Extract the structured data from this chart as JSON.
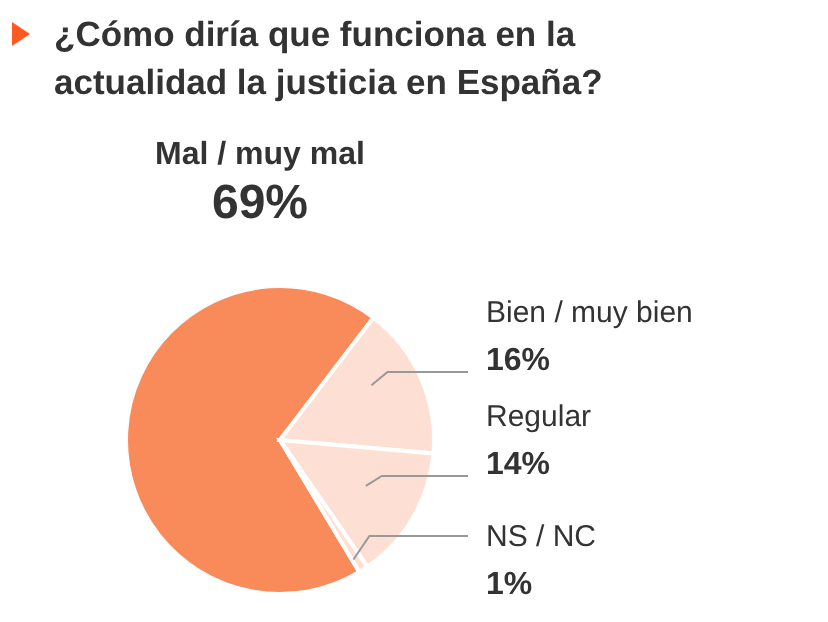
{
  "chart_data": {
    "type": "pie",
    "title": "¿Cómo diría que funciona en la actualidad la justicia en España?",
    "categories": [
      "Mal / muy mal",
      "Bien / muy bien",
      "Regular",
      "NS / NC"
    ],
    "values": [
      69,
      16,
      14,
      1
    ],
    "value_labels": [
      "69%",
      "16%",
      "14%",
      "1%"
    ],
    "colors": [
      "#f98b5a",
      "#fde0d3",
      "#fde0d3",
      "#fde0d3"
    ]
  }
}
